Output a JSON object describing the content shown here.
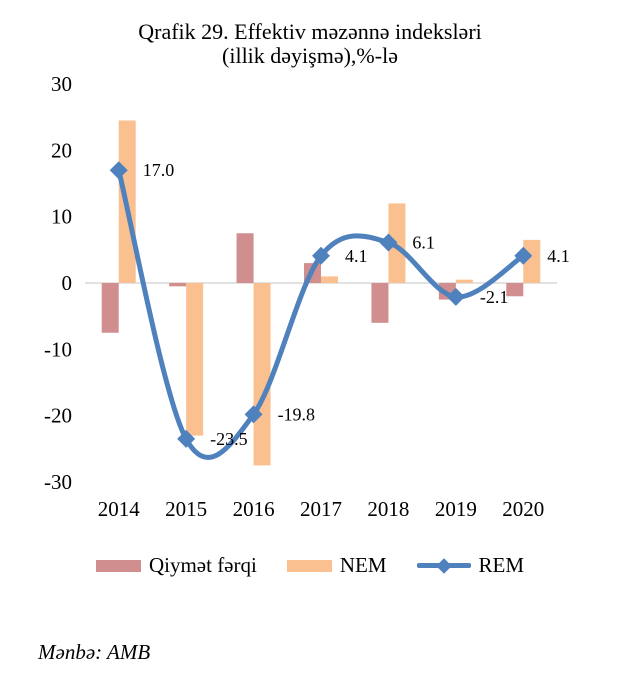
{
  "source_note": "Mənbə: AMB",
  "chart_data": {
    "type": "bar+line",
    "title": "Qrafik 29. Effektiv məzənnə indeksləri (illik dəyişmə),%-lə",
    "title_lines": [
      "Qrafik 29. Effektiv məzənnə indeksləri",
      "(illik dəyişmə),%-lə"
    ],
    "categories": [
      "2014",
      "2015",
      "2016",
      "2017",
      "2018",
      "2019",
      "2020"
    ],
    "bar_series": [
      {
        "name": "Qiymət fərqi",
        "color": "#D08E8E",
        "values": [
          -7.5,
          -0.5,
          7.5,
          3.0,
          -6.0,
          -2.5,
          -2.0
        ]
      },
      {
        "name": "NEM",
        "color": "#FAC090",
        "values": [
          24.5,
          -23.0,
          -27.5,
          1.0,
          12.0,
          0.5,
          6.5
        ]
      }
    ],
    "line_series": {
      "name": "REM",
      "color": "#4F81BD",
      "values": [
        17.0,
        -23.5,
        -19.8,
        4.1,
        6.1,
        -2.1,
        4.1
      ],
      "labels": [
        "17.0",
        "-23.5",
        "-19.8",
        "4.1",
        "6.1",
        "-2.1",
        "4.1"
      ]
    },
    "ylim": [
      -30,
      30
    ],
    "yticks": [
      30,
      20,
      10,
      0,
      -10,
      -20,
      -30
    ],
    "gridline_color": "#D9D9D9",
    "grid": "zero-line-only",
    "legend_position": "bottom"
  }
}
